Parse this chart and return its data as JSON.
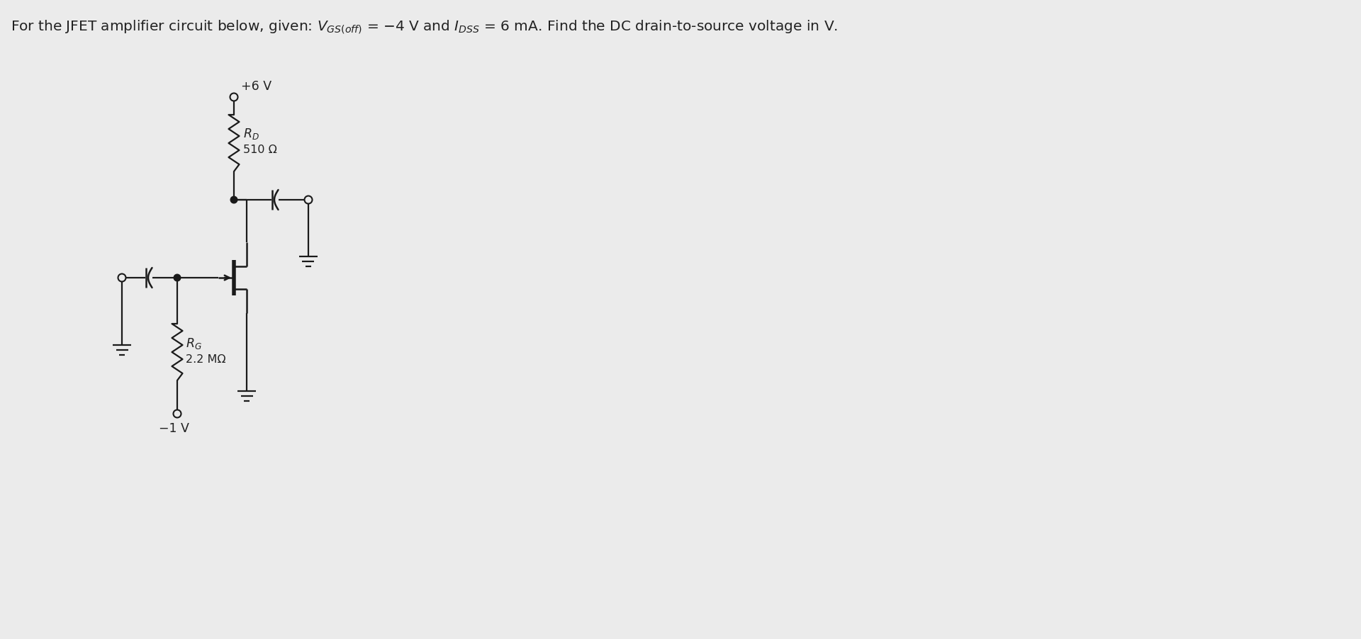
{
  "title_text": "For the JFET amplifier circuit below, given: $V_{GS(off)}$ = −4 V and $I_{DSS}$ = 6 mA. Find the DC drain-to-source voltage in V.",
  "background_color": "#ebebeb",
  "line_color": "#1a1a1a",
  "text_color": "#222222",
  "rd_label": "$R_D$",
  "rd_value": "510 Ω",
  "rg_label": "$R_G$",
  "rg_value": "2.2 MΩ",
  "vdd_label": "+6 V",
  "vss_label": "−1 V",
  "title_fontsize": 14.5
}
